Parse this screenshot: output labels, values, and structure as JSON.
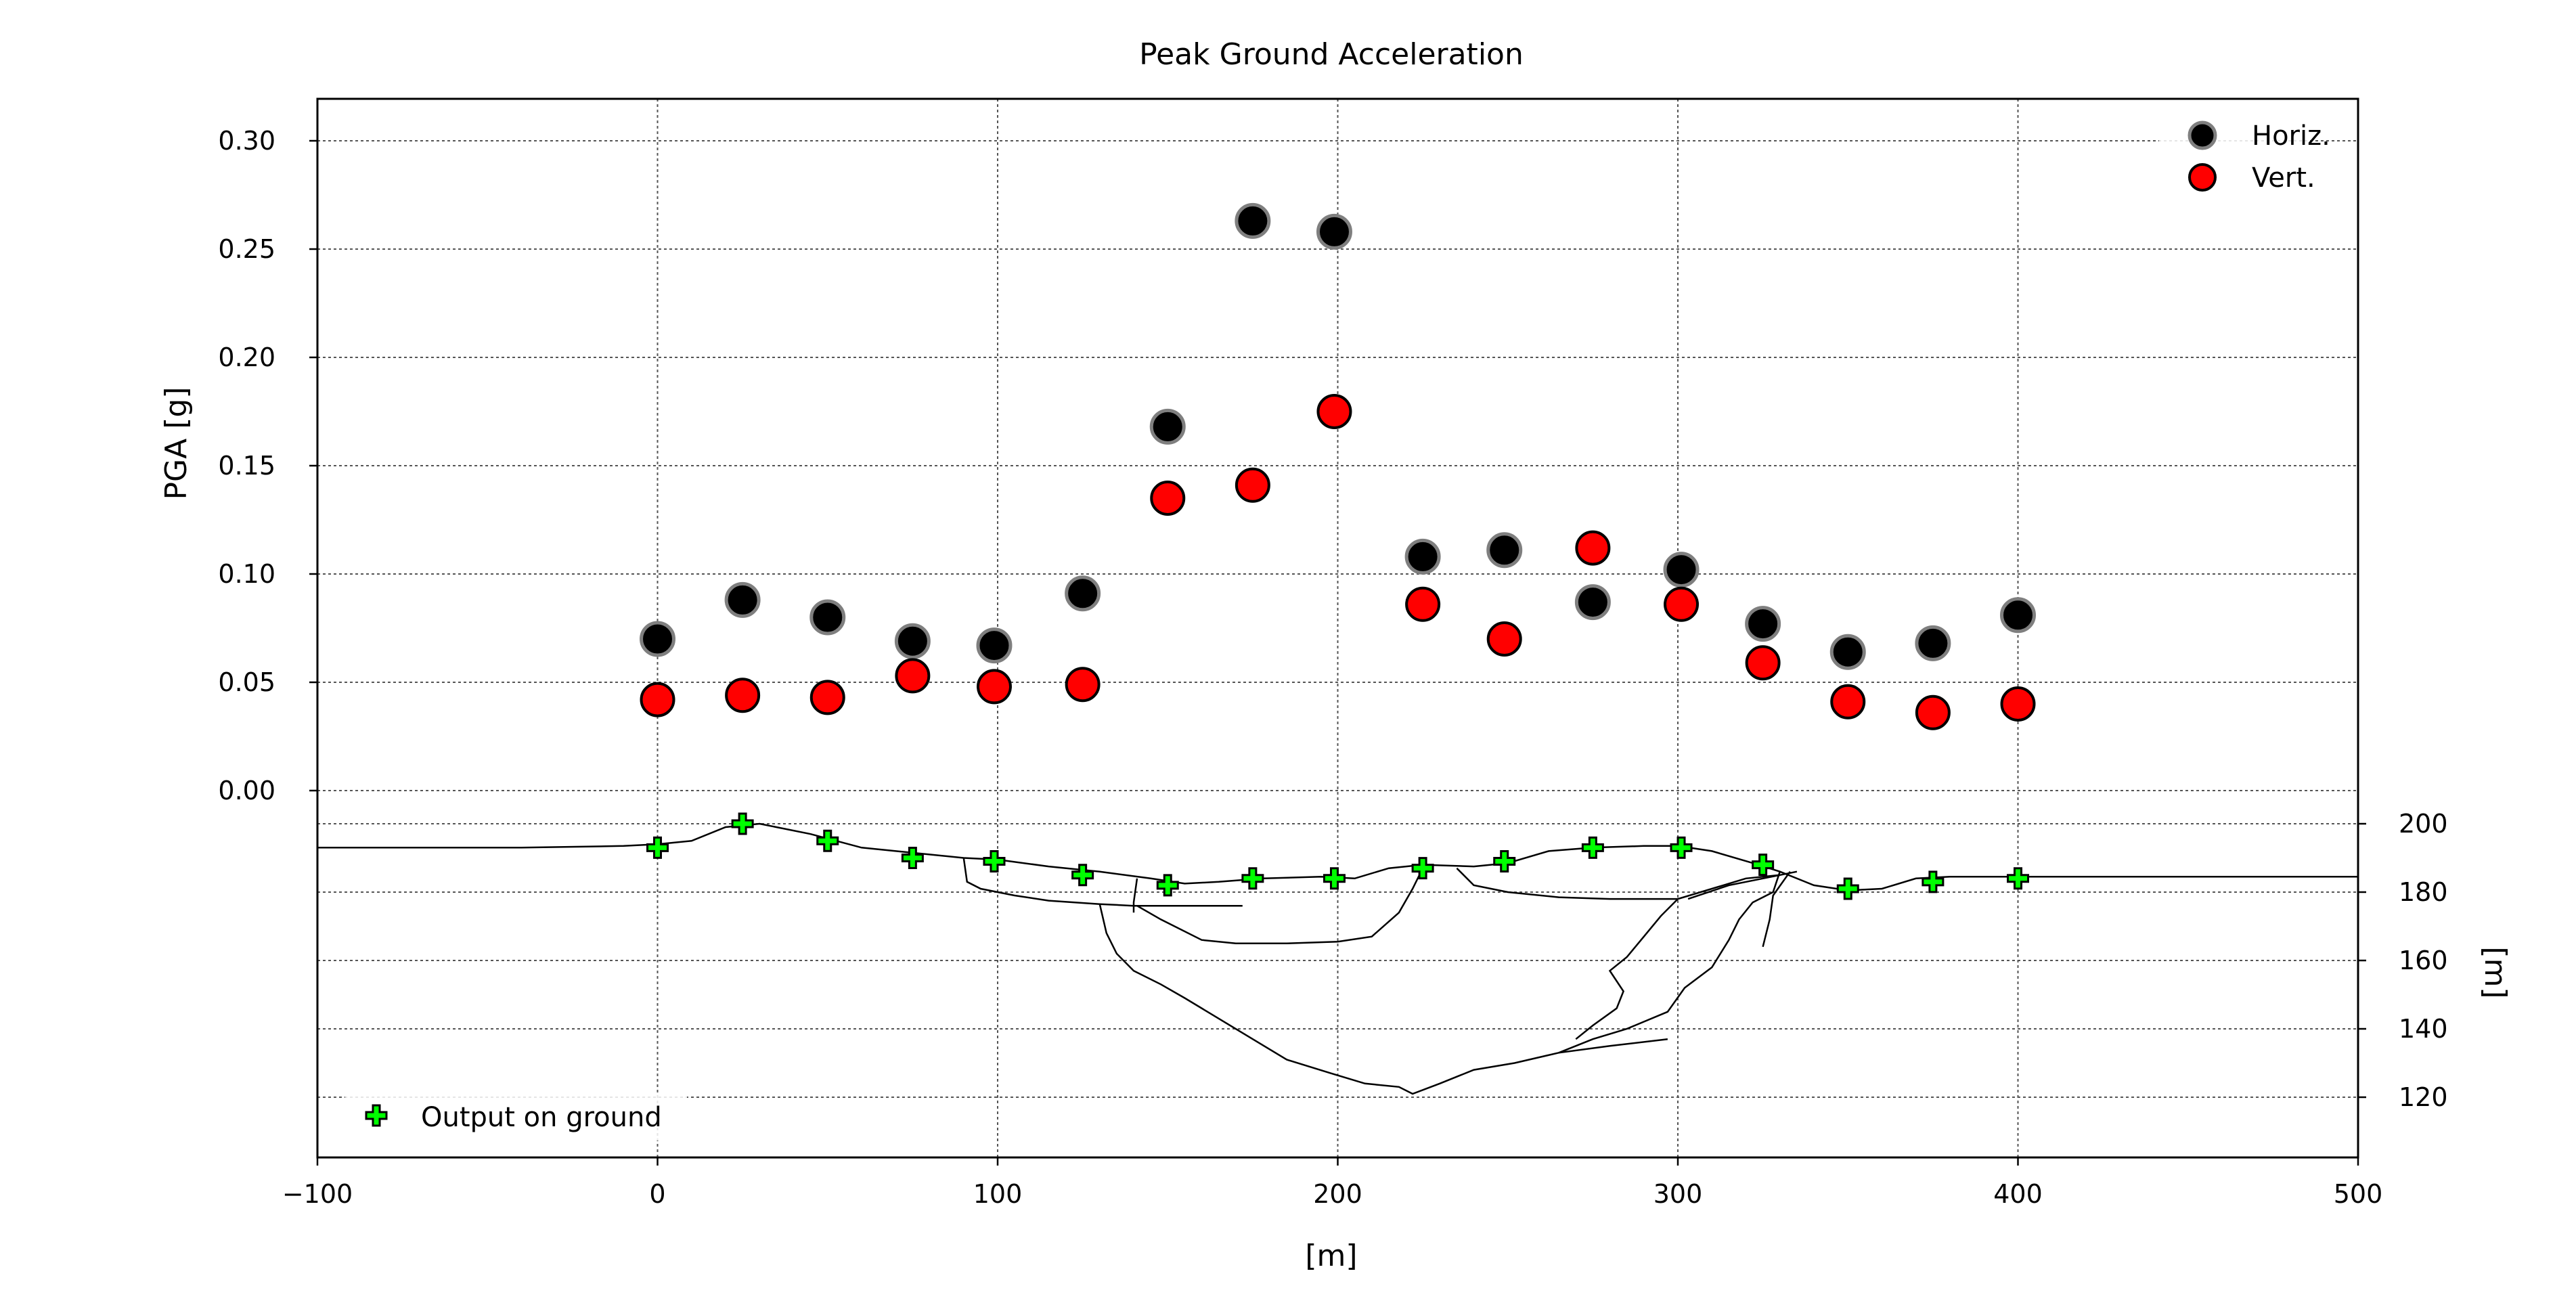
{
  "chart_data": {
    "type": "scatter",
    "title": "Peak Ground Acceleration",
    "xlabel": "[m]",
    "ylabel": "PGA [g]",
    "y2label": "[m]",
    "xlim": [
      -100,
      500
    ],
    "ylim": [
      0,
      0.3
    ],
    "elev_ticks": [
      200,
      180,
      160,
      140,
      120
    ],
    "x_ticks": [
      "−100",
      "0",
      "100",
      "200",
      "300",
      "400",
      "500"
    ],
    "y_ticks": [
      "0.00",
      "0.05",
      "0.10",
      "0.15",
      "0.20",
      "0.25",
      "0.30"
    ],
    "y2_ticks": [
      "200",
      "180",
      "160",
      "140",
      "120"
    ],
    "grid": true,
    "legend_top": "top-right",
    "legend_bottom": "bottom-left",
    "series": [
      {
        "name": "Horiz.",
        "color": "#000000",
        "edge": "#7f7f7f",
        "x": [
          0,
          25,
          50,
          75,
          99,
          125,
          150,
          175,
          199,
          225,
          249,
          275,
          301,
          325,
          350,
          375,
          400
        ],
        "y": [
          0.07,
          0.088,
          0.08,
          0.069,
          0.067,
          0.091,
          0.168,
          0.263,
          0.258,
          0.108,
          0.111,
          0.087,
          0.102,
          0.077,
          0.064,
          0.068,
          0.081
        ]
      },
      {
        "name": "Vert.",
        "color": "#ff0000",
        "edge": "#000000",
        "x": [
          0,
          25,
          50,
          75,
          99,
          125,
          150,
          175,
          199,
          225,
          249,
          275,
          301,
          325,
          350,
          375,
          400
        ],
        "y": [
          0.042,
          0.044,
          0.043,
          0.053,
          0.048,
          0.049,
          0.135,
          0.141,
          0.175,
          0.086,
          0.07,
          0.112,
          0.086,
          0.059,
          0.041,
          0.036,
          0.04
        ]
      }
    ],
    "ground_output": {
      "name": "Output on ground",
      "color": "#00ff00",
      "x": [
        0,
        25,
        50,
        75,
        99,
        125,
        150,
        175,
        199,
        225,
        249,
        275,
        301,
        325,
        350,
        375,
        400
      ],
      "z": [
        193,
        200,
        195,
        190,
        189,
        185,
        182,
        184,
        184,
        187,
        189,
        193,
        193,
        188,
        181,
        183,
        184
      ]
    },
    "profile_lines": [
      [
        [
          -100,
          193
        ],
        [
          -70,
          193
        ],
        [
          -40,
          193
        ],
        [
          -10,
          193.5
        ],
        [
          0,
          194
        ],
        [
          10,
          195
        ],
        [
          20,
          199
        ],
        [
          30,
          200
        ],
        [
          45,
          197
        ],
        [
          60,
          193
        ],
        [
          75,
          191.5
        ],
        [
          90,
          190
        ],
        [
          100,
          189.5
        ],
        [
          115,
          187.5
        ],
        [
          130,
          186
        ],
        [
          145,
          184
        ],
        [
          155,
          182.5
        ],
        [
          165,
          183
        ],
        [
          178,
          184
        ],
        [
          195,
          184.5
        ],
        [
          205,
          184
        ],
        [
          215,
          187
        ],
        [
          225,
          188
        ],
        [
          240,
          187.5
        ],
        [
          250,
          188.5
        ],
        [
          262,
          192
        ],
        [
          275,
          193
        ],
        [
          290,
          193.5
        ],
        [
          300,
          193.5
        ],
        [
          310,
          192
        ],
        [
          322,
          188.5
        ],
        [
          330,
          186
        ],
        [
          340,
          182
        ],
        [
          350,
          180.5
        ],
        [
          360,
          181
        ],
        [
          370,
          184
        ],
        [
          380,
          184.5
        ],
        [
          400,
          184.5
        ],
        [
          420,
          184.5
        ],
        [
          450,
          184.5
        ],
        [
          480,
          184.5
        ],
        [
          500,
          184.5
        ]
      ],
      [
        [
          90,
          190
        ],
        [
          91,
          183
        ],
        [
          95,
          181
        ],
        [
          105,
          179
        ],
        [
          115,
          177.5
        ],
        [
          130,
          176.5
        ],
        [
          140,
          176
        ],
        [
          165,
          176
        ],
        [
          172,
          176
        ]
      ],
      [
        [
          141,
          184
        ],
        [
          140,
          177
        ],
        [
          140,
          174
        ]
      ],
      [
        [
          141,
          176
        ],
        [
          148,
          172
        ],
        [
          160,
          166
        ],
        [
          170,
          165
        ],
        [
          185,
          165
        ],
        [
          200,
          165.5
        ],
        [
          210,
          167
        ],
        [
          218,
          174
        ],
        [
          222,
          181
        ],
        [
          225,
          187
        ]
      ],
      [
        [
          130,
          176.5
        ],
        [
          132,
          168
        ],
        [
          135,
          162
        ],
        [
          140,
          157
        ],
        [
          148,
          153
        ],
        [
          155,
          149
        ],
        [
          165,
          143
        ],
        [
          175,
          137
        ],
        [
          185,
          131
        ],
        [
          198,
          127
        ],
        [
          208,
          124
        ],
        [
          218,
          123
        ],
        [
          222,
          121
        ],
        [
          230,
          124
        ],
        [
          240,
          128
        ],
        [
          252,
          130
        ],
        [
          265,
          133
        ],
        [
          280,
          135
        ],
        [
          297,
          137
        ]
      ],
      [
        [
          235,
          187
        ],
        [
          240,
          182
        ],
        [
          250,
          180
        ],
        [
          265,
          178.5
        ],
        [
          280,
          178
        ],
        [
          300,
          178
        ],
        [
          310,
          181
        ],
        [
          320,
          184
        ],
        [
          330,
          185
        ],
        [
          335,
          186
        ]
      ],
      [
        [
          300,
          178
        ],
        [
          295,
          173
        ],
        [
          290,
          167
        ],
        [
          285,
          161
        ],
        [
          280,
          157
        ],
        [
          284,
          151
        ],
        [
          282,
          146
        ],
        [
          275,
          141
        ],
        [
          270,
          137
        ]
      ],
      [
        [
          303,
          178
        ],
        [
          315,
          182
        ],
        [
          330,
          185
        ]
      ],
      [
        [
          330,
          186
        ],
        [
          328,
          180
        ],
        [
          322,
          177
        ],
        [
          318,
          172
        ],
        [
          315,
          166
        ],
        [
          310,
          158
        ],
        [
          302,
          152
        ],
        [
          297,
          145
        ],
        [
          285,
          140
        ],
        [
          275,
          137
        ],
        [
          265,
          133
        ]
      ],
      [
        [
          333,
          186
        ],
        [
          328,
          179
        ],
        [
          327,
          172
        ],
        [
          325,
          164
        ]
      ]
    ]
  }
}
